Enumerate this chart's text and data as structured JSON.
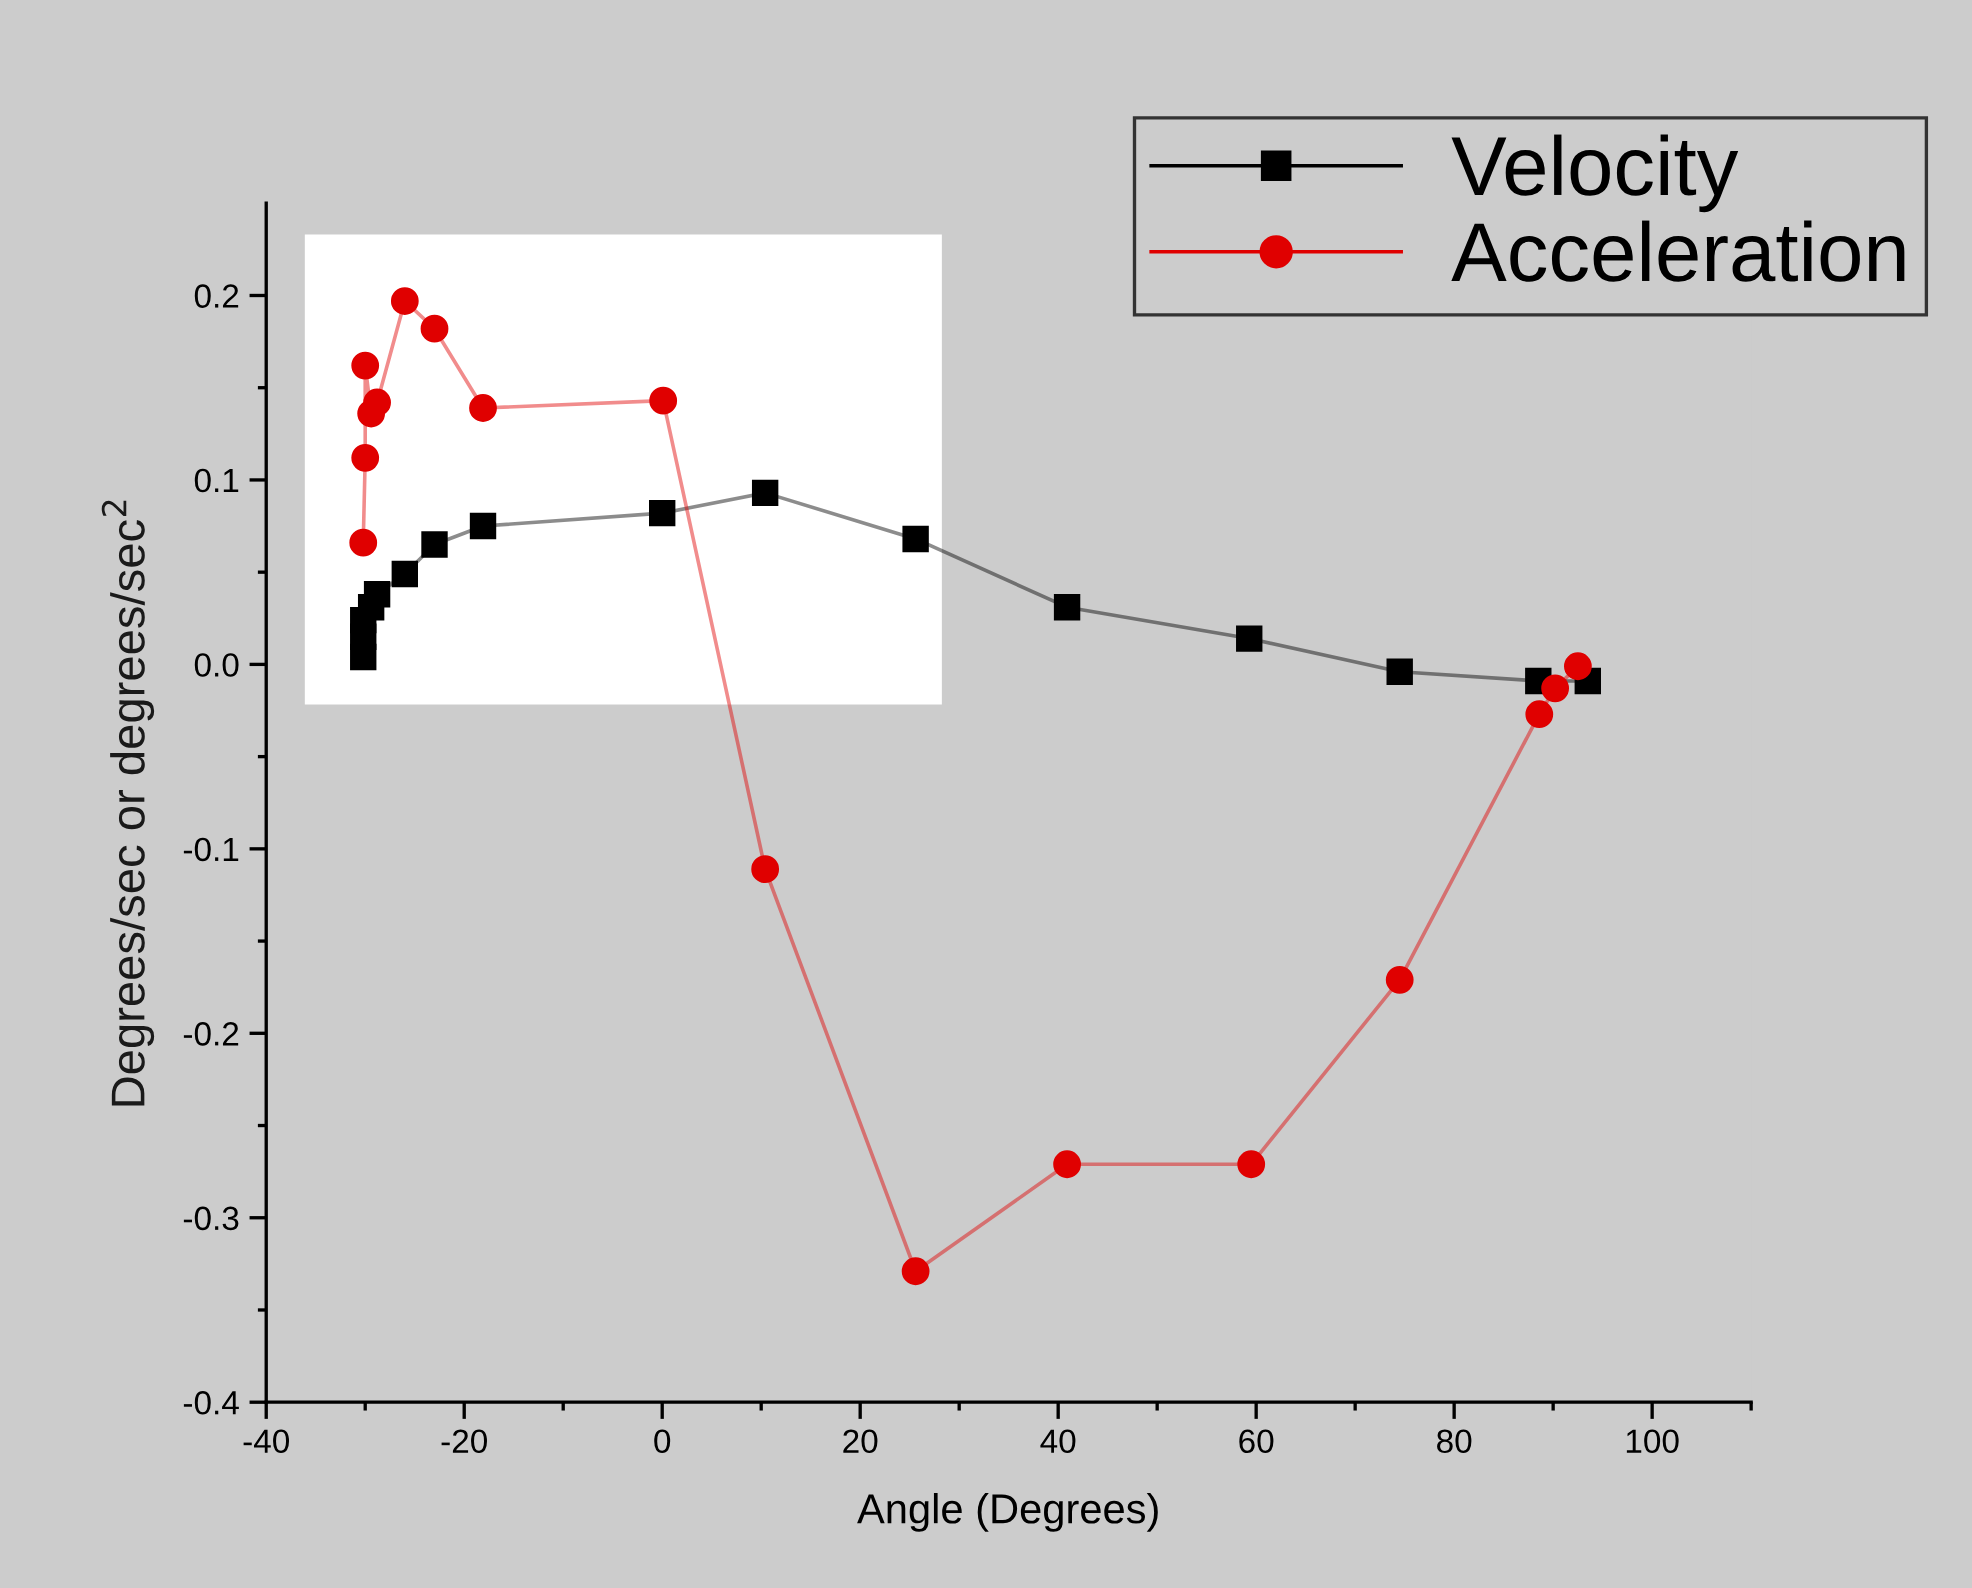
{
  "chart_data": {
    "type": "line",
    "xlabel": "Angle (Degrees)",
    "ylabel": "Degrees/sec or degrees/sec$^{2}$",
    "xlim": [
      -40,
      110
    ],
    "xticks": [
      -40,
      -20,
      0,
      20,
      40,
      60,
      80,
      100
    ],
    "ylim": [
      -0.4,
      0.25
    ],
    "yticks": [
      {
        "value": -0.4,
        "label": "-0.4"
      },
      {
        "value": -0.3,
        "label": "-0.3"
      },
      {
        "value": -0.2,
        "label": "-0.2"
      },
      {
        "value": -0.1,
        "label": "-0.1"
      },
      {
        "value": 0.0,
        "label": "0.0"
      },
      {
        "value": 0.1,
        "label": "0.1"
      },
      {
        "value": 0.2,
        "label": "0.2"
      }
    ],
    "grid": false,
    "legend": "top right",
    "series": [
      {
        "name": "Velocity",
        "color": "#000000",
        "marker": "square",
        "x": [
          -30.2,
          -30.2,
          -30.2,
          -29.4,
          -28.8,
          -26.0,
          -23.0,
          -18.1,
          0,
          10.4,
          25.6,
          40.9,
          59.3,
          74.5,
          88.5,
          93.5
        ],
        "values": [
          0.004,
          0.015,
          0.024,
          0.031,
          0.038,
          0.049,
          0.065,
          0.075,
          0.082,
          0.093,
          0.068,
          0.031,
          0.014,
          -0.004,
          -0.009,
          -0.009
        ]
      },
      {
        "name": "Acceleration",
        "color": "#e00000",
        "marker": "circle",
        "x": [
          -30.2,
          -30.0,
          -30.0,
          -29.4,
          -28.8,
          -26.0,
          -23.0,
          -18.1,
          0.1,
          10.4,
          25.6,
          40.9,
          59.5,
          74.5,
          88.6,
          90.2,
          92.5
        ],
        "values": [
          0.066,
          0.112,
          0.162,
          0.136,
          0.142,
          0.197,
          0.182,
          0.139,
          0.143,
          -0.111,
          -0.329,
          -0.271,
          -0.271,
          -0.171,
          -0.027,
          -0.013,
          -0.001
        ]
      }
    ]
  }
}
